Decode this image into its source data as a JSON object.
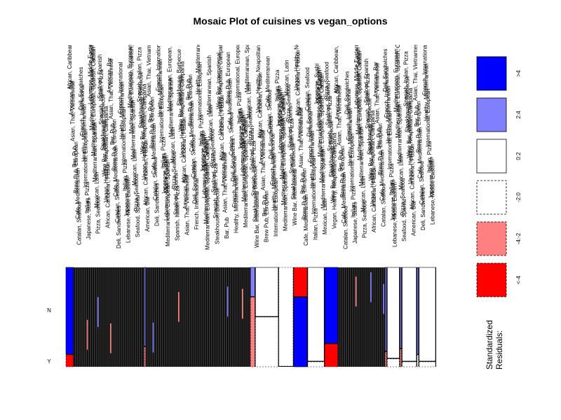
{
  "chart_data": {
    "type": "mosaic",
    "title": "Mosaic Plot of cuisines vs vegan_options",
    "row_levels": [
      "N",
      "Y"
    ],
    "legend": {
      "title_line1": "Standardized",
      "title_line2": "Residuals:",
      "bins": [
        {
          "label": ">4",
          "color": "#0000ff",
          "style": "solid"
        },
        {
          "label": "2:4",
          "color": "#8080ff",
          "style": "solid"
        },
        {
          "label": "0:2",
          "color": "#ffffff",
          "style": "solid"
        },
        {
          "label": "-2:0",
          "color": "#ffffff",
          "style": "dashed"
        },
        {
          "label": "-4:-2",
          "color": "#ff8080",
          "style": "dashed"
        },
        {
          "label": "<-4",
          "color": "#ff0000",
          "style": "dashed"
        }
      ]
    },
    "highlight_columns": [
      {
        "width": 0.019,
        "y_share": 0.12,
        "resid": ">4",
        "yres": "<-4"
      },
      {
        "width": 0.165,
        "y_share": 0.05,
        "resid": "0:2",
        "yres": "-2:0"
      },
      {
        "width": 0.005,
        "y_share": 0.2,
        "resid": "2:4",
        "yres": "-4:-2"
      },
      {
        "width": 0.245,
        "y_share": 0.04,
        "resid": "0:2",
        "yres": "-2:0"
      },
      {
        "width": 0.012,
        "y_share": 0.7,
        "resid": "2:4",
        "yres": "-4:-2"
      },
      {
        "width": 0.055,
        "y_share": 0.5,
        "resid": "0:2",
        "yres": "-2:0"
      },
      {
        "width": 0.035,
        "y_share": 0.0,
        "resid": "-2:0",
        "yres": "0:2"
      },
      {
        "width": 0.033,
        "y_share": 0.7,
        "resid": "<-4",
        "yres": ">4"
      },
      {
        "width": 0.04,
        "y_share": 0.05,
        "resid": "0:2",
        "yres": "-2:0"
      },
      {
        "width": 0.032,
        "y_share": 0.23,
        "resid": ">4",
        "yres": "<-4"
      },
      {
        "width": 0.11,
        "y_share": 0.05,
        "resid": "0:2",
        "yres": "-2:0"
      },
      {
        "width": 0.005,
        "y_share": 0.15,
        "resid": "2:4",
        "yres": "-4:-2"
      },
      {
        "width": 0.03,
        "y_share": 0.08,
        "resid": "0:2",
        "yres": "-2:0"
      },
      {
        "width": 0.005,
        "y_share": 0.18,
        "resid": "2:4",
        "yres": "-4:-2"
      },
      {
        "width": 0.035,
        "y_share": 0.05,
        "resid": "0:2",
        "yres": "-2:0"
      },
      {
        "width": 0.005,
        "y_share": 0.12,
        "resid": "2:4",
        "yres": "-2:0"
      },
      {
        "width": 0.04,
        "y_share": 0.05,
        "resid": "0:2",
        "yres": "-2:0"
      }
    ],
    "column_labels_readable": [
      "African, Caribbean, Fusion",
      "American, Bar",
      "Asian, Thai, Vietnamese",
      "Bar, Pub",
      "Brew Pub, European",
      "Cafe, Mediterranean",
      "Catalan, Seafood",
      "Deli, Sandwiches",
      "French, International",
      "Healthy, Mediterranean",
      "International, European",
      "Italian, Pizza",
      "Japanese, Sushi",
      "Lebanese, Middle Eastern",
      "Mediterranean, European, Spanish",
      "Mediterranean, European, Spanish, Catalan",
      "Mediterranean, Spanish",
      "Mexican, Latin",
      "Pizza, Seafood",
      "Seafood, Spanish",
      "Spanish, Italian, Pizza",
      "Steakhouse, Barbecue",
      "Wine Bar, International",
      "Vegan, Healthy, Neapolitan, Campania"
    ]
  }
}
